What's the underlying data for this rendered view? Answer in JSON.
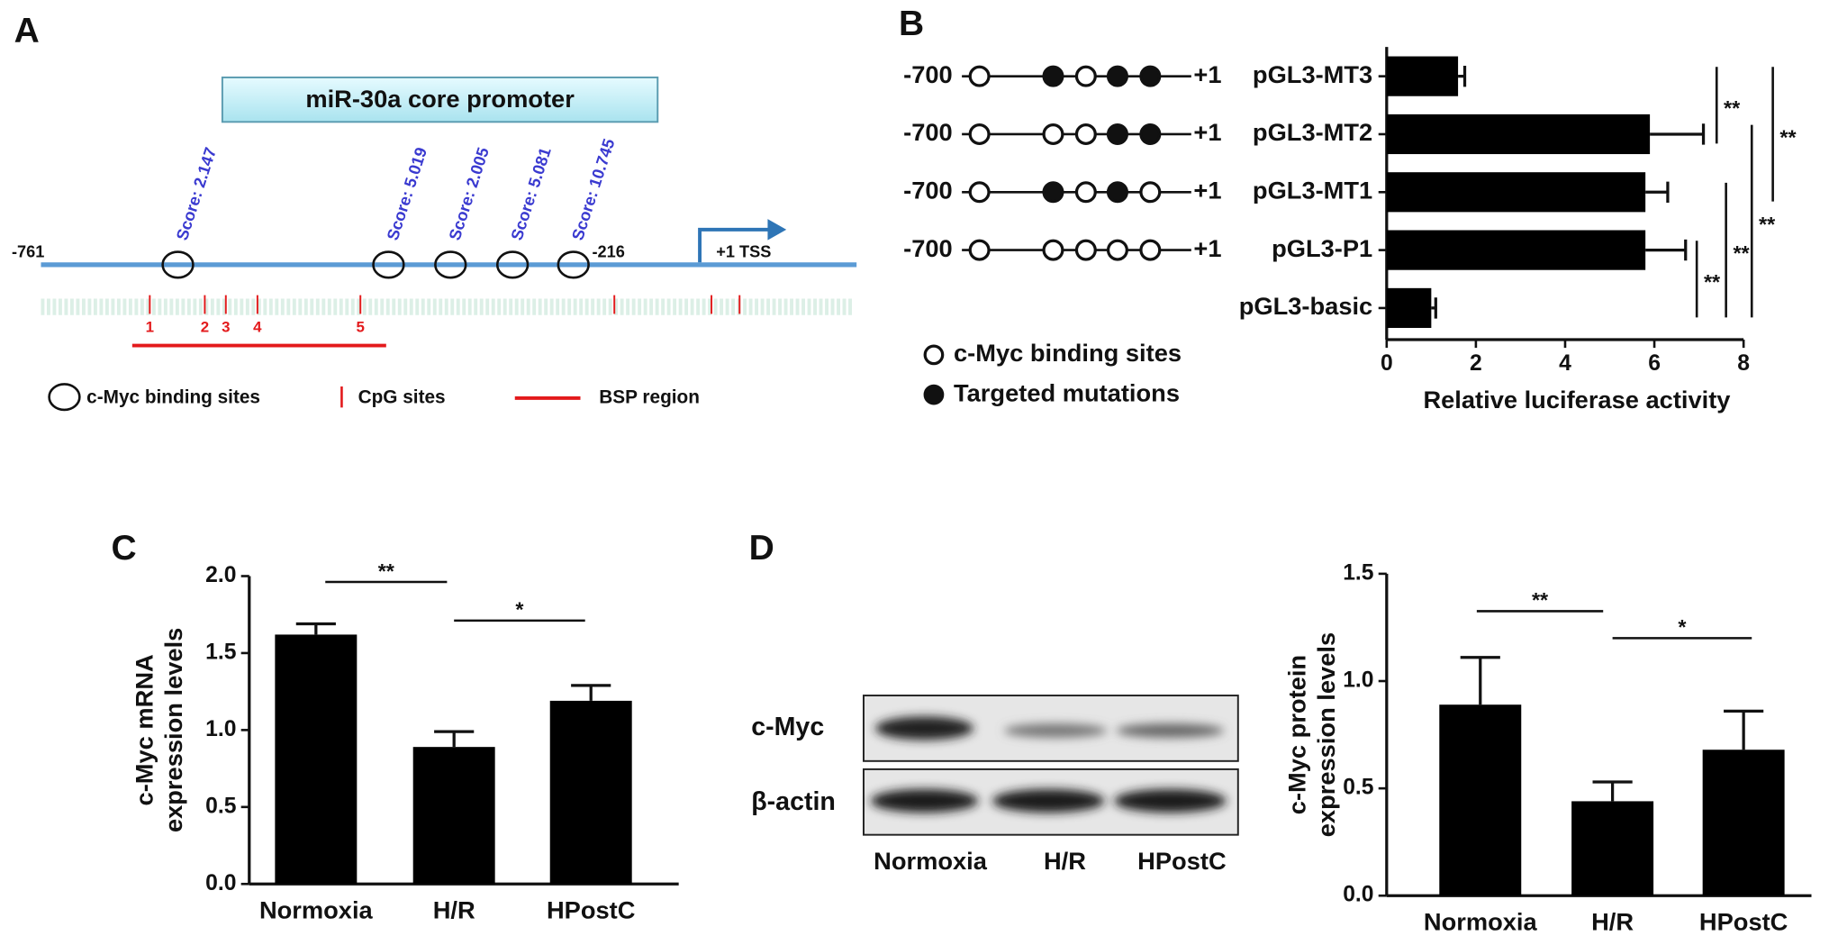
{
  "panel_a": {
    "letter": "A",
    "promoter_box": "miR-30a  core promoter",
    "start": "-761",
    "end": "-216",
    "tss": "+1 TSS",
    "scores": [
      "Score: 2.147",
      "Score: 5.019",
      "Score: 2.005",
      "Score: 5.081",
      "Score: 10.745"
    ],
    "cpg_labels": [
      "1",
      "2",
      "3",
      "4",
      "5"
    ],
    "legend": [
      "c-Myc binding sites",
      "CpG sites",
      "BSP region"
    ]
  },
  "panel_d_blot": {
    "letter": "D",
    "rows": [
      "c-Myc",
      "β-actin"
    ],
    "lanes": [
      "Normoxia",
      "H/R",
      "HPostC"
    ]
  },
  "chart_data": [
    {
      "type": "hbar",
      "letter": "B",
      "categories": [
        "pGL3-MT3",
        "pGL3-MT2",
        "pGL3-MT1",
        "pGL3-P1",
        "pGL3-basic"
      ],
      "values": [
        1.6,
        5.9,
        5.8,
        5.8,
        1.0
      ],
      "errors": [
        0.15,
        1.2,
        0.5,
        0.9,
        0.1
      ],
      "color": "#000000",
      "xlim": [
        0,
        8
      ],
      "xticks": [
        0,
        2,
        4,
        6,
        8
      ],
      "xlabel": "Relative luciferase activity",
      "constructs": [
        {
          "start": "-700",
          "end": "+1",
          "sites": [
            false,
            true,
            false,
            true,
            true
          ]
        },
        {
          "start": "-700",
          "end": "+1",
          "sites": [
            false,
            false,
            false,
            true,
            true
          ]
        },
        {
          "start": "-700",
          "end": "+1",
          "sites": [
            false,
            true,
            false,
            true,
            false
          ]
        },
        {
          "start": "-700",
          "end": "+1",
          "sites": [
            false,
            false,
            false,
            false,
            false
          ]
        }
      ],
      "legend": [
        "c-Myc binding sites",
        "Targeted mutations"
      ],
      "significance": [
        {
          "label": "**",
          "from": "pGL3-MT3",
          "to": "pGL3-MT2"
        },
        {
          "label": "**",
          "from": "pGL3-MT3",
          "to": "pGL3-MT1"
        },
        {
          "label": "**",
          "from": "pGL3-P1",
          "to": "pGL3-basic"
        },
        {
          "label": "**",
          "from": "pGL3-MT1",
          "to": "pGL3-basic"
        },
        {
          "label": "**",
          "from": "pGL3-MT2",
          "to": "pGL3-basic"
        }
      ]
    },
    {
      "type": "bar",
      "letter": "C",
      "categories": [
        "Normoxia",
        "H/R",
        "HPostC"
      ],
      "values": [
        1.62,
        0.89,
        1.19
      ],
      "errors": [
        0.07,
        0.1,
        0.1
      ],
      "color": "#000000",
      "ylim": [
        0,
        2
      ],
      "yticks": [
        {
          "value": 0,
          "label": "0.0"
        },
        0.5,
        {
          "value": 1,
          "label": "1.0"
        },
        1.5,
        {
          "value": 2,
          "label": "2.0"
        }
      ],
      "ylabel": [
        "c-Myc mRNA",
        "expression levels"
      ],
      "significance": [
        {
          "label": "**",
          "from": "Normoxia",
          "to": "H/R"
        },
        {
          "label": "*",
          "from": "H/R",
          "to": "HPostC"
        }
      ]
    },
    {
      "type": "bar",
      "categories": [
        "Normoxia",
        "H/R",
        "HPostC"
      ],
      "values": [
        0.89,
        0.44,
        0.68
      ],
      "errors": [
        0.22,
        0.09,
        0.18
      ],
      "color": "#000000",
      "ylim": [
        0,
        1.5
      ],
      "yticks": [
        {
          "value": 0,
          "label": "0.0"
        },
        0.5,
        {
          "value": 1,
          "label": "1.0"
        },
        1.5
      ],
      "ylabel": [
        "c-Myc protein",
        "expression levels"
      ],
      "significance": [
        {
          "label": "**",
          "from": "Normoxia",
          "to": "H/R"
        },
        {
          "label": "*",
          "from": "H/R",
          "to": "HPostC"
        }
      ]
    }
  ]
}
